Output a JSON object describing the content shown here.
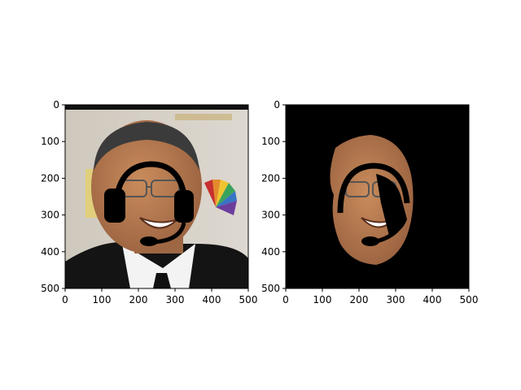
{
  "chart_data": [
    {
      "type": "image",
      "title": "",
      "xlabel": "",
      "ylabel": "",
      "xlim": [
        0,
        500
      ],
      "ylim": [
        500,
        0
      ],
      "x_ticks": [
        0,
        100,
        200,
        300,
        400,
        500
      ],
      "y_ticks": [
        0,
        100,
        200,
        300,
        400,
        500
      ],
      "image_content": "photo of a smiling man in a dark suit with a drawn black headset overlay",
      "colors": {
        "background_wall": "#d8d2c8",
        "skin": "#b57a4f",
        "suit": "#121212",
        "shirt": "#f4f4f4",
        "overlay": "#000000"
      }
    },
    {
      "type": "image",
      "title": "",
      "xlabel": "",
      "ylabel": "",
      "xlim": [
        0,
        500
      ],
      "ylim": [
        500,
        0
      ],
      "x_ticks": [
        0,
        100,
        200,
        300,
        400,
        500
      ],
      "y_ticks": [
        0,
        100,
        200,
        300,
        400,
        500
      ],
      "image_content": "segmented face region on black background with partial headset overlay",
      "colors": {
        "background": "#000000",
        "skin": "#b57a4f",
        "overlay": "#000000"
      }
    }
  ]
}
